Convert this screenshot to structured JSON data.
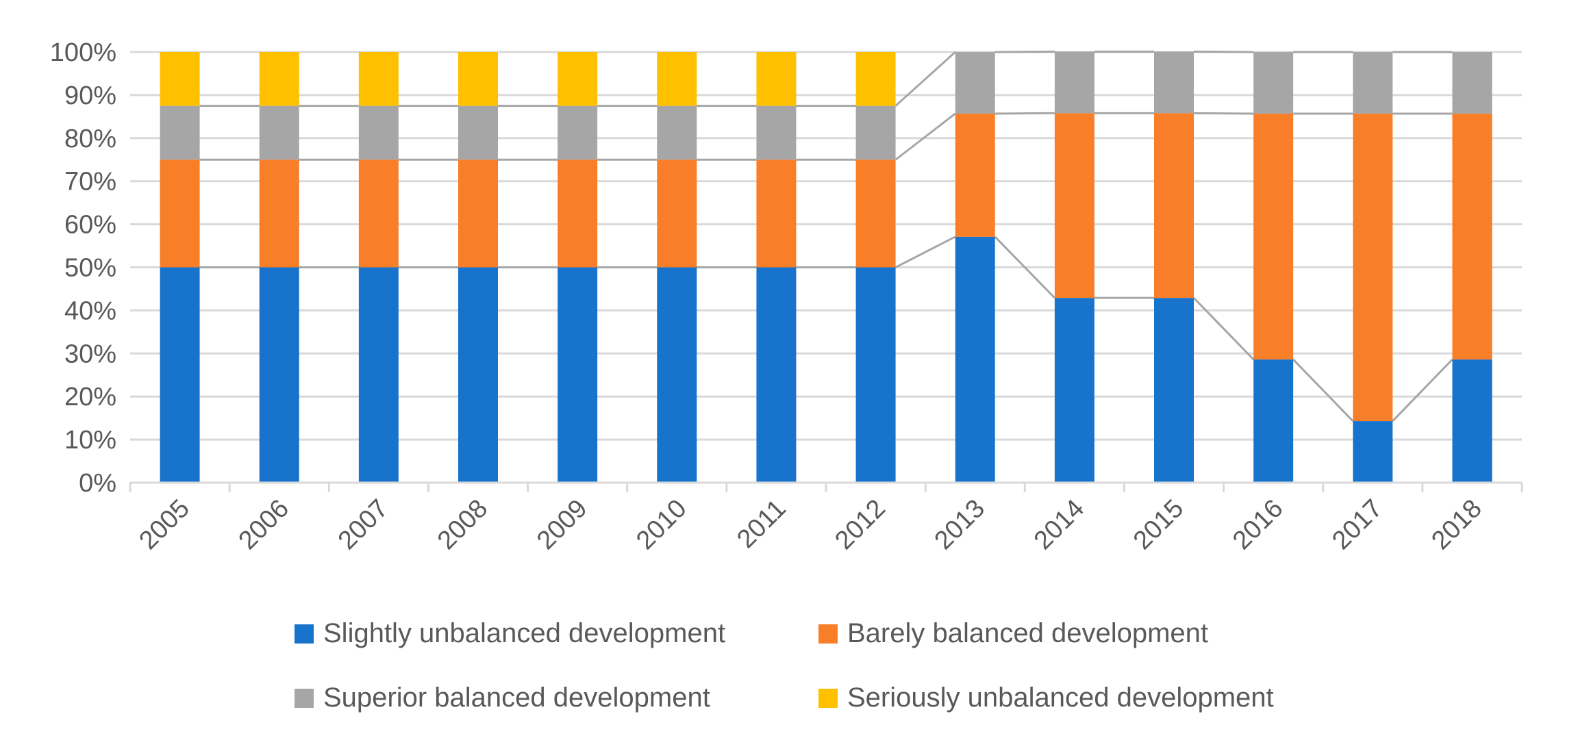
{
  "chart_data": {
    "type": "bar",
    "stacked": true,
    "percent": true,
    "title": "",
    "xlabel": "",
    "ylabel": "",
    "ylim": [
      0,
      100
    ],
    "y_ticks": [
      "0%",
      "10%",
      "20%",
      "30%",
      "40%",
      "50%",
      "60%",
      "70%",
      "80%",
      "90%",
      "100%"
    ],
    "categories": [
      "2005",
      "2006",
      "2007",
      "2008",
      "2009",
      "2010",
      "2011",
      "2012",
      "2013",
      "2014",
      "2015",
      "2016",
      "2017",
      "2018"
    ],
    "series": [
      {
        "name": "Slightly unbalanced development",
        "color": "#1873CC",
        "values": [
          50,
          50,
          50,
          50,
          50,
          50,
          50,
          50,
          57.1,
          42.9,
          42.9,
          28.6,
          14.3,
          28.6
        ]
      },
      {
        "name": "Barely balanced development",
        "color": "#F97E28",
        "values": [
          25,
          25,
          25,
          25,
          25,
          25,
          25,
          25,
          28.6,
          42.9,
          42.9,
          57.1,
          71.4,
          57.1
        ]
      },
      {
        "name": "Superior balanced development",
        "color": "#A6A6A6",
        "values": [
          12.5,
          12.5,
          12.5,
          12.5,
          12.5,
          12.5,
          12.5,
          12.5,
          14.3,
          14.3,
          14.3,
          14.3,
          14.3,
          14.3
        ]
      },
      {
        "name": "Seriously unbalanced development",
        "color": "#FFC000",
        "values": [
          12.5,
          12.5,
          12.5,
          12.5,
          12.5,
          12.5,
          12.5,
          12.5,
          0,
          0,
          0,
          0,
          0,
          0
        ]
      }
    ],
    "legend_order": [
      0,
      1,
      2,
      3
    ],
    "legend_position": "bottom",
    "grid": true,
    "series_lines": true
  }
}
